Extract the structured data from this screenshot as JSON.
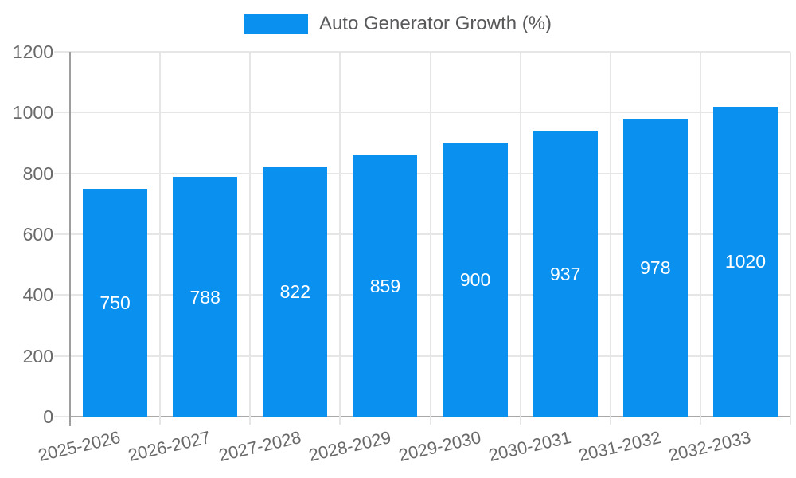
{
  "legend": {
    "label": "Auto Generator Growth (%)"
  },
  "colors": {
    "bar": "#0a91f0",
    "grid": "#e6e6e6",
    "axis": "#9e9e9e",
    "baseline": "#a8a8a8",
    "tick_text": "#696969",
    "value_text": "#ffffff",
    "legend_text": "#58595b",
    "background": "#ffffff"
  },
  "chart_data": {
    "type": "bar",
    "title": "Auto Generator Growth (%)",
    "categories": [
      "2025-2026",
      "2026-2027",
      "2027-2028",
      "2028-2029",
      "2029-2030",
      "2030-2031",
      "2031-2032",
      "2032-2033"
    ],
    "values": [
      750,
      788,
      822,
      859,
      900,
      937,
      978,
      1020
    ],
    "xlabel": "",
    "ylabel": "",
    "ylim": [
      0,
      1200
    ],
    "yticks": [
      0,
      200,
      400,
      600,
      800,
      1000,
      1200
    ],
    "grid": true,
    "legend_position": "top-center",
    "value_labels": "inside-center",
    "x_tick_rotation_deg": -13
  }
}
